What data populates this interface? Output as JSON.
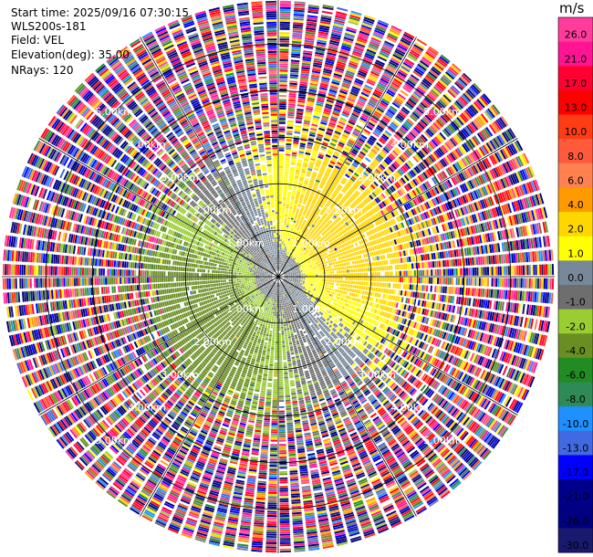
{
  "info": {
    "start_time": "Start time: 2025/09/16 07:30:15",
    "instrument": "WLS200s-181",
    "field": "Field: VEL",
    "elevation": "Elevation(deg): 35.00",
    "nrays": "NRays: 120"
  },
  "chart_data": {
    "type": "ppi_radar",
    "field": "VEL",
    "units": "m/s",
    "nrays": 120,
    "elevation_deg": 35.0,
    "range_rings_km": [
      1.0,
      2.0,
      3.0,
      4.0,
      5.0
    ],
    "range_labels": [
      "1.00km",
      "2.00km",
      "3.00km",
      "4.00km",
      "5.00km"
    ],
    "max_range_km": 5.95,
    "spokes_deg": [
      0,
      30,
      60,
      90,
      120,
      150,
      180,
      210,
      240,
      270,
      300,
      330
    ],
    "colorbar": {
      "title": "m/s",
      "tick_labels": [
        "26.0",
        "21.0",
        "17.0",
        "13.0",
        "10.0",
        "8.0",
        "6.0",
        "4.0",
        "2.0",
        "1.0",
        "0.0",
        "-1.0",
        "-2.0",
        "-4.0",
        "-6.0",
        "-8.0",
        "-10.0",
        "-13.0",
        "-17.0",
        "-21.0",
        "-26.0",
        "-30.0"
      ],
      "bins": [
        {
          "lo": 26.0,
          "hi": 30.0,
          "color": "#ff3c9c"
        },
        {
          "lo": 21.0,
          "hi": 26.0,
          "color": "#ff1493"
        },
        {
          "lo": 17.0,
          "hi": 21.0,
          "color": "#ff0033"
        },
        {
          "lo": 13.0,
          "hi": 17.0,
          "color": "#ff0000"
        },
        {
          "lo": 10.0,
          "hi": 13.0,
          "color": "#ff3c14"
        },
        {
          "lo": 8.0,
          "hi": 10.0,
          "color": "#ff5a3c"
        },
        {
          "lo": 6.0,
          "hi": 8.0,
          "color": "#ff8050"
        },
        {
          "lo": 4.0,
          "hi": 6.0,
          "color": "#ff9a00"
        },
        {
          "lo": 2.0,
          "hi": 4.0,
          "color": "#ffd700"
        },
        {
          "lo": 1.0,
          "hi": 2.0,
          "color": "#ffff00"
        },
        {
          "lo": 0.0,
          "hi": 1.0,
          "color": "#778899"
        },
        {
          "lo": -1.0,
          "hi": 0.0,
          "color": "#6e6e6e"
        },
        {
          "lo": -2.0,
          "hi": -1.0,
          "color": "#9acd32"
        },
        {
          "lo": -4.0,
          "hi": -2.0,
          "color": "#6b8e23"
        },
        {
          "lo": -6.0,
          "hi": -4.0,
          "color": "#228b22"
        },
        {
          "lo": -8.0,
          "hi": -6.0,
          "color": "#2e8b57"
        },
        {
          "lo": -10.0,
          "hi": -8.0,
          "color": "#1e90ff"
        },
        {
          "lo": -13.0,
          "hi": -10.0,
          "color": "#4169e1"
        },
        {
          "lo": -17.0,
          "hi": -13.0,
          "color": "#0000ff"
        },
        {
          "lo": -21.0,
          "hi": -17.0,
          "color": "#00008b"
        },
        {
          "lo": -26.0,
          "hi": -21.0,
          "color": "#000080"
        },
        {
          "lo": -30.0,
          "hi": -26.0,
          "color": "#191970"
        }
      ]
    },
    "velocity_pattern": {
      "description": "Near-field ring (< ~2.5 km) shows positive (yellow) velocities to the north-east / east and negative (green) to the south-west, with grey near zero; far range is noisy across all bins.",
      "positive_sector_center_deg": 60,
      "clean_range_km": 2.6,
      "peak_positive_ms": 3.0,
      "peak_negative_ms": -3.0
    }
  }
}
